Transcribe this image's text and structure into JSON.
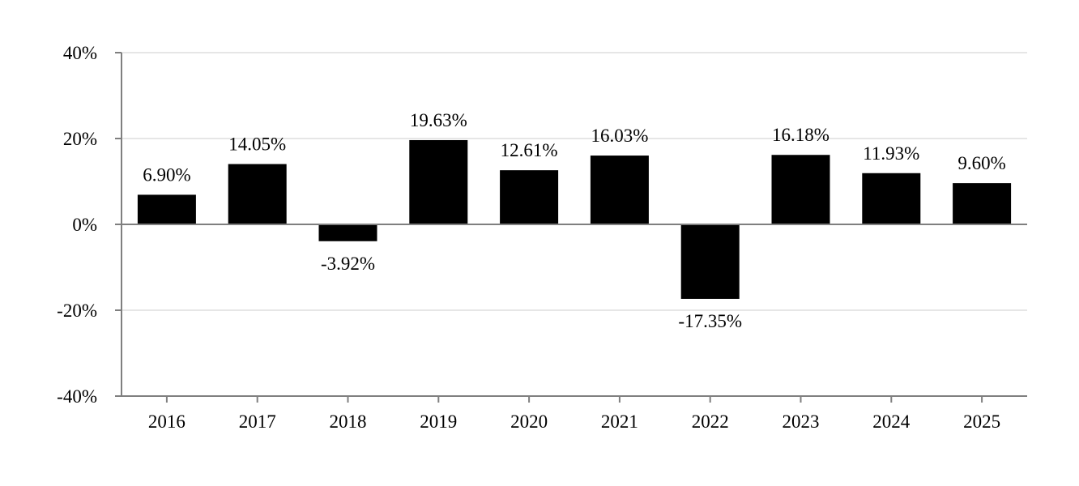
{
  "chart_data": {
    "type": "bar",
    "categories": [
      "2016",
      "2017",
      "2018",
      "2019",
      "2020",
      "2021",
      "2022",
      "2023",
      "2024",
      "2025"
    ],
    "values": [
      6.9,
      14.05,
      -3.92,
      19.63,
      12.61,
      16.03,
      -17.35,
      16.18,
      11.93,
      9.6
    ],
    "data_labels": [
      "6.90%",
      "14.05%",
      "-3.92%",
      "19.63%",
      "12.61%",
      "16.03%",
      "-17.35%",
      "16.18%",
      "11.93%",
      "9.60%"
    ],
    "title": "",
    "xlabel": "",
    "ylabel": "",
    "ylim": [
      -40,
      40
    ],
    "yticks": [
      40,
      20,
      0,
      -20,
      -40
    ],
    "ytick_labels": [
      "40%",
      "20%",
      "0%",
      "-20%",
      "-40%"
    ],
    "grid": true,
    "legend": "none",
    "colors": {
      "bar": "#000000",
      "grid": "#e6e6e6",
      "axis": "#7f7f7f",
      "text": "#000000"
    }
  }
}
